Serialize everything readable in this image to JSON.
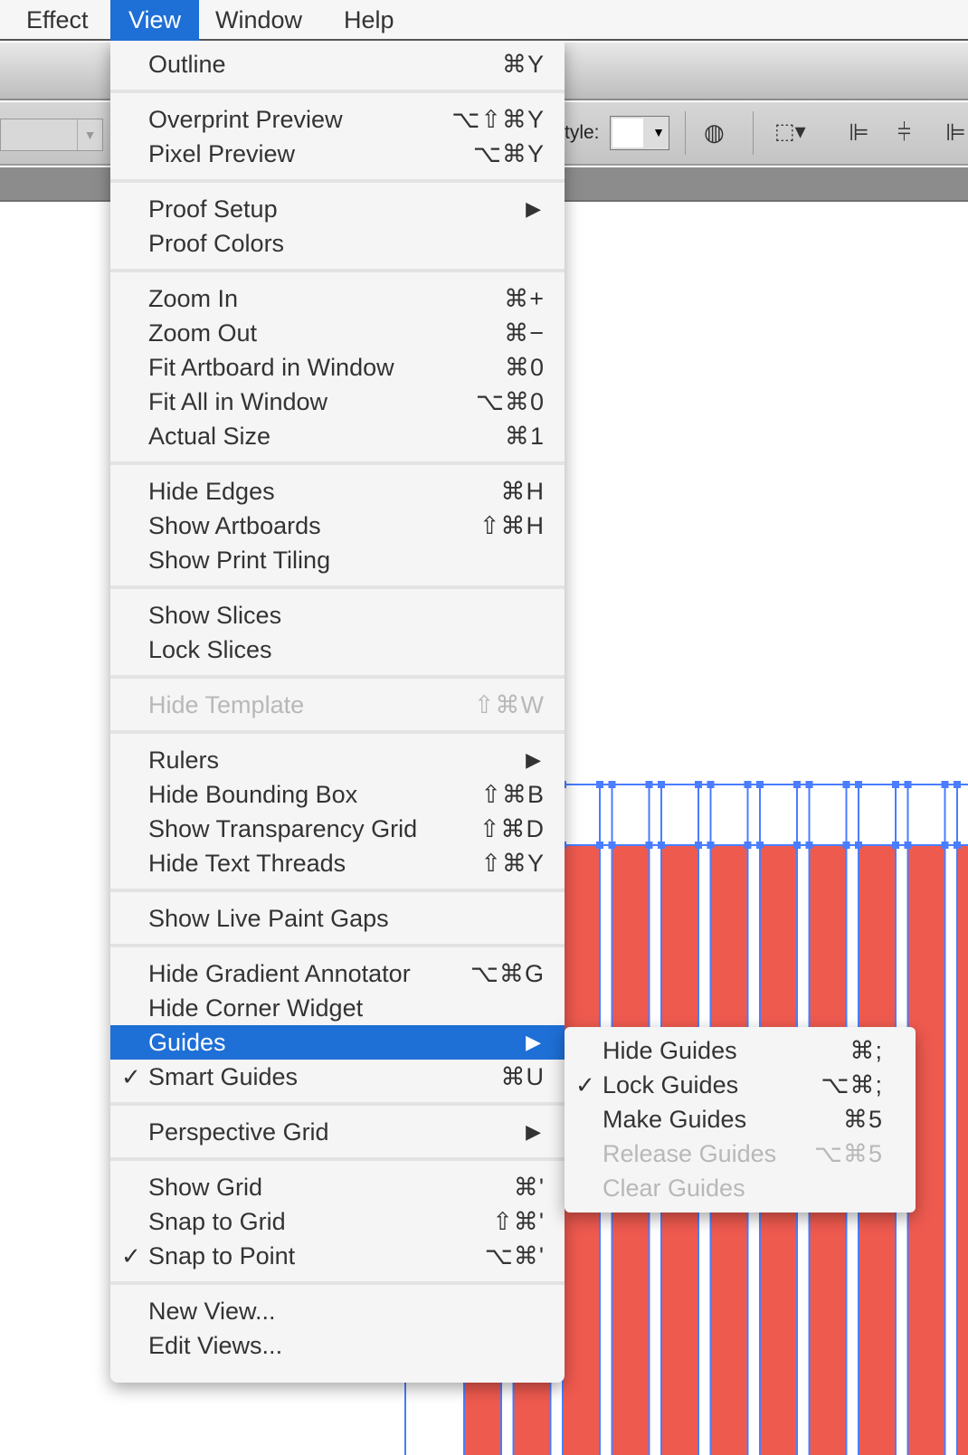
{
  "menubar": {
    "items": [
      "Effect",
      "View",
      "Window",
      "Help"
    ],
    "active": "View"
  },
  "toolbar": {
    "style_label": "tyle:"
  },
  "view_menu": {
    "groups": [
      [
        {
          "label": "Outline",
          "shortcut": "⌘Y"
        }
      ],
      [
        {
          "label": "Overprint Preview",
          "shortcut": "⌥⇧⌘Y"
        },
        {
          "label": "Pixel Preview",
          "shortcut": "⌥⌘Y"
        }
      ],
      [
        {
          "label": "Proof Setup",
          "submenu": true
        },
        {
          "label": "Proof Colors"
        }
      ],
      [
        {
          "label": "Zoom In",
          "shortcut": "⌘+"
        },
        {
          "label": "Zoom Out",
          "shortcut": "⌘−"
        },
        {
          "label": "Fit Artboard in Window",
          "shortcut": "⌘0"
        },
        {
          "label": "Fit All in Window",
          "shortcut": "⌥⌘0"
        },
        {
          "label": "Actual Size",
          "shortcut": "⌘1"
        }
      ],
      [
        {
          "label": "Hide Edges",
          "shortcut": "⌘H"
        },
        {
          "label": "Show Artboards",
          "shortcut": "⇧⌘H"
        },
        {
          "label": "Show Print Tiling"
        }
      ],
      [
        {
          "label": "Show Slices"
        },
        {
          "label": "Lock Slices"
        }
      ],
      [
        {
          "label": "Hide Template",
          "shortcut": "⇧⌘W",
          "disabled": true
        }
      ],
      [
        {
          "label": "Rulers",
          "submenu": true
        },
        {
          "label": "Hide Bounding Box",
          "shortcut": "⇧⌘B"
        },
        {
          "label": "Show Transparency Grid",
          "shortcut": "⇧⌘D"
        },
        {
          "label": "Hide Text Threads",
          "shortcut": "⇧⌘Y"
        }
      ],
      [
        {
          "label": "Show Live Paint Gaps"
        }
      ],
      [
        {
          "label": "Hide Gradient Annotator",
          "shortcut": "⌥⌘G"
        },
        {
          "label": "Hide Corner Widget"
        },
        {
          "label": "Guides",
          "submenu": true,
          "highlighted": true
        },
        {
          "label": "Smart Guides",
          "shortcut": "⌘U",
          "checked": true
        }
      ],
      [
        {
          "label": "Perspective Grid",
          "submenu": true
        }
      ],
      [
        {
          "label": "Show Grid",
          "shortcut": "⌘'"
        },
        {
          "label": "Snap to Grid",
          "shortcut": "⇧⌘'"
        },
        {
          "label": "Snap to Point",
          "shortcut": "⌥⌘'",
          "checked": true
        }
      ],
      [
        {
          "label": "New View..."
        },
        {
          "label": "Edit Views..."
        }
      ]
    ]
  },
  "guides_submenu": {
    "items": [
      {
        "label": "Hide Guides",
        "shortcut": "⌘;"
      },
      {
        "label": "Lock Guides",
        "shortcut": "⌥⌘;",
        "checked": true
      },
      {
        "label": "Make Guides",
        "shortcut": "⌘5"
      },
      {
        "label": "Release Guides",
        "shortcut": "⌥⌘5",
        "disabled": true
      },
      {
        "label": "Clear Guides",
        "disabled": true
      }
    ]
  },
  "colors": {
    "accent": "#1e6fd6",
    "stripe": "#ef5a4f",
    "guide": "#4a7dff"
  },
  "icons": {
    "check": "✓",
    "submenu_arrow": "▶"
  }
}
